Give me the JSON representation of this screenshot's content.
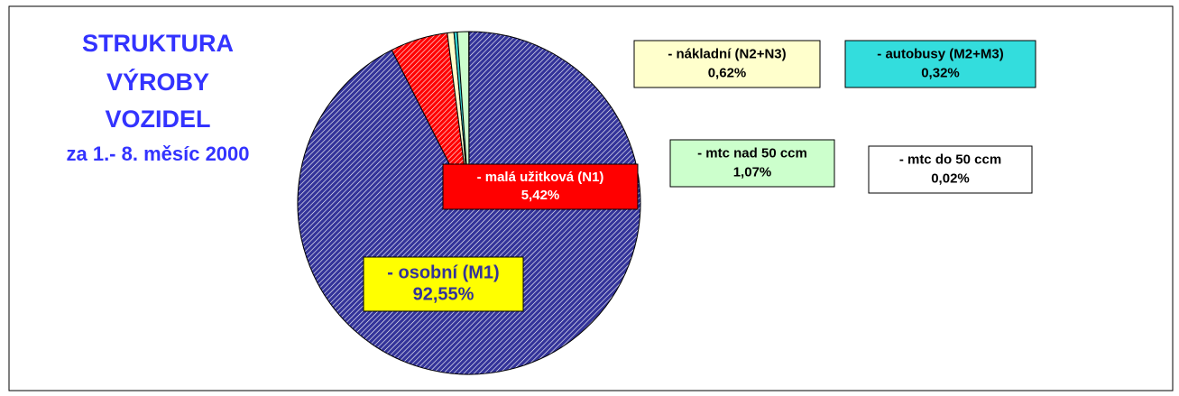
{
  "chart_data": {
    "type": "pie",
    "title": [
      "STRUKTURA",
      "VÝROBY",
      "VOZIDEL"
    ],
    "subtitle": "za 1.- 8. měsíc 2000",
    "categories": [
      "- osobní (M1)",
      "- malá užitková (N1)",
      "- nákladní (N2+N3)",
      "- autobusy (M2+M3)",
      "- mtc nad 50 ccm",
      "- mtc do 50 ccm"
    ],
    "values": [
      92.55,
      5.42,
      0.62,
      0.32,
      1.07,
      0.02
    ],
    "value_labels": [
      "92,55%",
      "5,42%",
      "0,62%",
      "0,32%",
      "1,07%",
      "0,02%"
    ],
    "colors": [
      "#333399",
      "#ff0000",
      "#ffffcc",
      "#33cccc",
      "#ccffcc",
      "#ffffff"
    ],
    "hatched": [
      true,
      true,
      false,
      false,
      false,
      false
    ],
    "label_colors": [
      "#ffff00",
      "#ff0000",
      "#ffffcc",
      "#33dddd",
      "#ccffcc",
      "#ffffff"
    ]
  }
}
